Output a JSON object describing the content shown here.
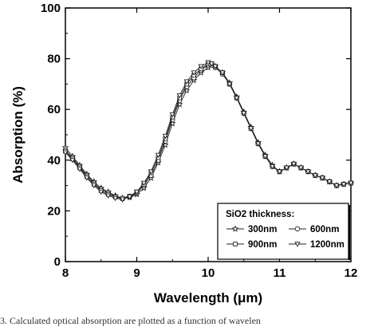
{
  "chart_data": {
    "type": "line",
    "title": "",
    "xlabel": "Wavelength (μm)",
    "ylabel": "Absorption (%)",
    "xlim": [
      8,
      12
    ],
    "ylim": [
      0,
      100
    ],
    "xticks": [
      "8",
      "9",
      "10",
      "11",
      "12"
    ],
    "yticks": [
      "0",
      "20",
      "40",
      "60",
      "80",
      "100"
    ],
    "grid": false,
    "legend_position": "bottom-right",
    "legend_title": "SiO2 thickness:",
    "x": [
      8.0,
      8.1,
      8.2,
      8.3,
      8.4,
      8.5,
      8.6,
      8.7,
      8.8,
      8.9,
      9.0,
      9.1,
      9.2,
      9.3,
      9.4,
      9.5,
      9.6,
      9.7,
      9.8,
      9.9,
      10.0,
      10.05,
      10.1,
      10.2,
      10.3,
      10.4,
      10.5,
      10.6,
      10.7,
      10.8,
      10.9,
      11.0,
      11.1,
      11.2,
      11.3,
      11.4,
      11.5,
      11.6,
      11.7,
      11.8,
      11.9,
      12.0
    ],
    "series": [
      {
        "name": "300nm",
        "marker": "star",
        "values": [
          45,
          41.5,
          38,
          34.5,
          31.5,
          29,
          27.5,
          26,
          25,
          25.3,
          26.5,
          29,
          33,
          39,
          46,
          54.5,
          62,
          67.5,
          71.5,
          74.5,
          76.5,
          77.5,
          77,
          74.5,
          70.5,
          65,
          59,
          53,
          47,
          42,
          38,
          35.5,
          37,
          38.5,
          37,
          35.5,
          34,
          33,
          31.5,
          30,
          30.5,
          31
        ]
      },
      {
        "name": "600nm",
        "marker": "circle",
        "values": [
          44,
          41,
          37.5,
          34,
          31,
          28.5,
          27,
          25.5,
          24.8,
          25.5,
          27,
          30,
          34,
          40,
          47.5,
          56,
          63.5,
          69,
          72.5,
          75.5,
          77.5,
          77.5,
          76.5,
          74,
          70,
          64.5,
          58.5,
          52.5,
          46.5,
          41.5,
          37.5,
          35.5,
          37,
          38.5,
          37,
          35.5,
          34,
          33,
          31.5,
          30,
          30.5,
          31
        ]
      },
      {
        "name": "900nm",
        "marker": "square",
        "values": [
          43.5,
          40.5,
          37,
          33.5,
          30.5,
          28,
          26.5,
          25.5,
          25,
          25.8,
          27.5,
          30.5,
          35,
          41,
          48.5,
          57,
          64.5,
          70,
          73.5,
          76,
          78,
          78,
          77,
          74.5,
          70,
          64.5,
          58.5,
          52.5,
          46.5,
          41.5,
          37.5,
          35.5,
          37,
          38.5,
          37,
          35.5,
          34,
          33,
          31.5,
          30,
          30.5,
          31
        ]
      },
      {
        "name": "1200nm",
        "marker": "triangle-down",
        "values": [
          43,
          40,
          36.5,
          33,
          30,
          27.5,
          26,
          25,
          24.5,
          25.5,
          27.5,
          31,
          35.5,
          42,
          49.5,
          58,
          65.5,
          71,
          74.5,
          77,
          78.5,
          78,
          77,
          74.5,
          70,
          64.5,
          58.5,
          52.5,
          46.5,
          41.5,
          37.5,
          35.5,
          37,
          38.5,
          37,
          35.5,
          34,
          33,
          31.5,
          30,
          30.5,
          31
        ]
      }
    ]
  },
  "caption": "3.  Calculated optical absorption are plotted as a function of wavelen"
}
